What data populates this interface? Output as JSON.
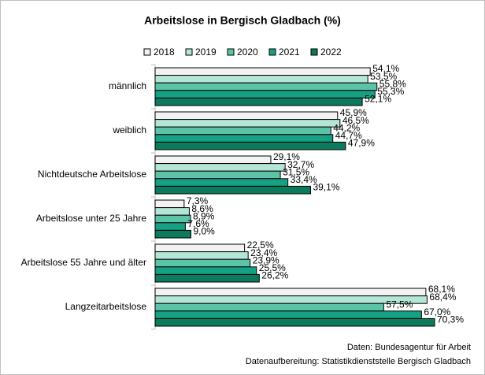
{
  "chart_data": {
    "type": "bar",
    "orientation": "horizontal",
    "title": "Arbeitslose in Bergisch Gladbach (%)",
    "categories": [
      "männlich",
      "weiblich",
      "Nichtdeutsche Arbeitslose",
      "Arbeitslose unter 25 Jahre",
      "Arbeitslose 55 Jahre und älter",
      "Langzeitarbeitslose"
    ],
    "series": [
      {
        "name": "2018",
        "color": "#f2f2f2",
        "values": [
          54.1,
          45.9,
          29.1,
          7.3,
          22.5,
          68.1
        ],
        "value_labels": [
          "54,1%",
          "45,9%",
          "29,1%",
          "7,3%",
          "22,5%",
          "68,1%"
        ]
      },
      {
        "name": "2019",
        "color": "#b4e6d8",
        "values": [
          53.5,
          46.5,
          32.7,
          8.6,
          23.4,
          68.4
        ],
        "value_labels": [
          "53,5%",
          "46,5%",
          "32,7%",
          "8,6%",
          "23,4%",
          "68,4%"
        ]
      },
      {
        "name": "2020",
        "color": "#5cc3a6",
        "values": [
          55.8,
          44.2,
          31.5,
          8.9,
          23.9,
          57.5
        ],
        "value_labels": [
          "55,8%",
          "44,2%",
          "31,5%",
          "8,9%",
          "23,9%",
          "57,5%"
        ]
      },
      {
        "name": "2021",
        "color": "#17a184",
        "values": [
          55.3,
          44.7,
          33.4,
          7.6,
          25.5,
          67.0
        ],
        "value_labels": [
          "55,3%",
          "44,7%",
          "33,4%",
          "7,6%",
          "25,5%",
          "67,0%"
        ]
      },
      {
        "name": "2022",
        "color": "#0b7a5d",
        "values": [
          52.1,
          47.9,
          39.1,
          9.0,
          26.2,
          70.3
        ],
        "value_labels": [
          "52,1%",
          "47,9%",
          "39,1%",
          "9,0%",
          "26,2%",
          "70,3%"
        ]
      }
    ],
    "source": [
      "Daten: Bundesagentur für Arbeit",
      "Datenaufbereitung: Statistikdienststelle Bergisch Gladbach"
    ]
  }
}
